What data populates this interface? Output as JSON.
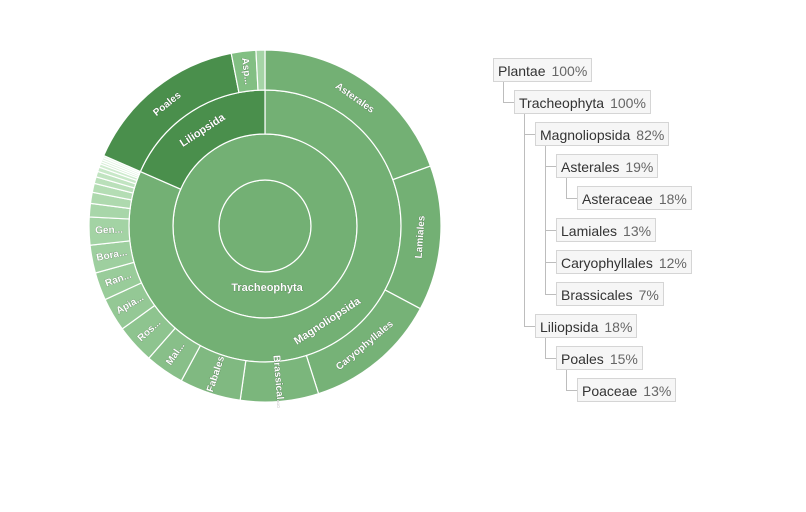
{
  "chart_data": {
    "type": "sunburst",
    "colors": {
      "magnoliopsida": "#73b074",
      "liliopsida": "#4a8f4c",
      "asp": "#82bf83",
      "segment_border": "#ffffff"
    },
    "root": {
      "name": "Plantae",
      "label": "",
      "children": [
        {
          "name": "Tracheophyta",
          "label": "Tracheophyta",
          "children": [
            {
              "name": "Magnoliopsida",
              "label": "Magnoliopsida",
              "color": "#73b074",
              "children": [
                {
                  "name": "Asterales",
                  "label": "Asterales",
                  "value": 19,
                  "color": "#73b074"
                },
                {
                  "name": "Lamiales",
                  "label": "Lamiales",
                  "value": 13,
                  "color": "#73b074"
                },
                {
                  "name": "Caryophyllales",
                  "label": "Caryophyllales",
                  "value": 12,
                  "color": "#76b277"
                },
                {
                  "name": "Brassicales",
                  "label": "Brassical...",
                  "value": 7,
                  "color": "#7bb67c"
                },
                {
                  "name": "Fabales",
                  "label": "Fabales",
                  "value": 5.5,
                  "color": "#80b981"
                },
                {
                  "name": "Malvales",
                  "label": "Mal...",
                  "value": 3.5,
                  "color": "#88bf89"
                },
                {
                  "name": "Rosales",
                  "label": "Ros...",
                  "value": 3.5,
                  "color": "#8ec48f"
                },
                {
                  "name": "Apiales",
                  "label": "Apia...",
                  "value": 3,
                  "color": "#94c895"
                },
                {
                  "name": "Ranunculales",
                  "label": "Ran...",
                  "value": 2.5,
                  "color": "#99cc9a"
                },
                {
                  "name": "Boraginales",
                  "label": "Bora...",
                  "value": 2.5,
                  "color": "#9ecf9f"
                },
                {
                  "name": "Gentianales",
                  "label": "Gen...",
                  "value": 2.5,
                  "color": "#a3d3a4"
                },
                {
                  "name": "small1",
                  "label": "",
                  "value": 1.2,
                  "color": "#a8d6a9"
                },
                {
                  "name": "small2",
                  "label": "",
                  "value": 1.0,
                  "color": "#aed9ae"
                },
                {
                  "name": "small3",
                  "label": "",
                  "value": 0.8,
                  "color": "#b4ddb4"
                },
                {
                  "name": "small4",
                  "label": "",
                  "value": 0.6,
                  "color": "#bae0ba"
                },
                {
                  "name": "small5",
                  "label": "",
                  "value": 0.5,
                  "color": "#c1e4c1"
                },
                {
                  "name": "small6",
                  "label": "",
                  "value": 0.4,
                  "color": "#c8e8c8"
                },
                {
                  "name": "small7",
                  "label": "",
                  "value": 0.3,
                  "color": "#cfebcf"
                },
                {
                  "name": "small8",
                  "label": "",
                  "value": 0.2,
                  "color": "#d6eed6"
                },
                {
                  "name": "small9",
                  "label": "",
                  "value": 0.2,
                  "color": "#dcf1dc"
                },
                {
                  "name": "small10",
                  "label": "",
                  "value": 0.2,
                  "color": "#e2f4e2"
                },
                {
                  "name": "small11",
                  "label": "",
                  "value": 0.2,
                  "color": "#e8f6e8"
                }
              ]
            },
            {
              "name": "Liliopsida",
              "label": "Liliopsida",
              "color": "#4a8f4c",
              "children": [
                {
                  "name": "Poales",
                  "label": "Poales",
                  "value": 15,
                  "color": "#4a8f4c"
                },
                {
                  "name": "Asparagales",
                  "label": "Asp...",
                  "value": 2.2,
                  "color": "#82bf83"
                },
                {
                  "name": "lil_small",
                  "label": "",
                  "value": 0.8,
                  "color": "#a5d4a6"
                }
              ]
            }
          ]
        }
      ]
    },
    "breadcrumb_tree": [
      {
        "name": "Plantae",
        "pct": "100%",
        "depth": 0,
        "row": 0
      },
      {
        "name": "Tracheophyta",
        "pct": "100%",
        "depth": 1,
        "row": 1
      },
      {
        "name": "Magnoliopsida",
        "pct": "82%",
        "depth": 2,
        "row": 2
      },
      {
        "name": "Asterales",
        "pct": "19%",
        "depth": 3,
        "row": 3
      },
      {
        "name": "Asteraceae",
        "pct": "18%",
        "depth": 4,
        "row": 4
      },
      {
        "name": "Lamiales",
        "pct": "13%",
        "depth": 3,
        "row": 5
      },
      {
        "name": "Caryophyllales",
        "pct": "12%",
        "depth": 3,
        "row": 6
      },
      {
        "name": "Brassicales",
        "pct": "7%",
        "depth": 3,
        "row": 7
      },
      {
        "name": "Liliopsida",
        "pct": "18%",
        "depth": 2,
        "row": 8
      },
      {
        "name": "Poales",
        "pct": "15%",
        "depth": 3,
        "row": 9
      },
      {
        "name": "Poaceae",
        "pct": "13%",
        "depth": 4,
        "row": 10
      }
    ]
  }
}
